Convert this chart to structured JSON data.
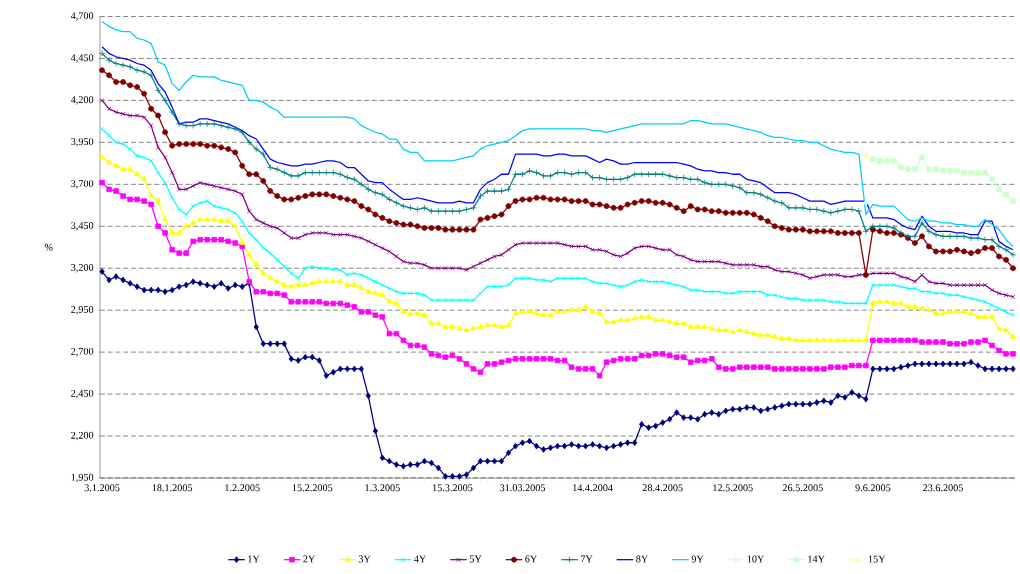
{
  "chart_data": {
    "type": "line",
    "ylabel": "%",
    "categories": [
      "3.1.2005",
      null,
      null,
      null,
      null,
      null,
      null,
      null,
      null,
      null,
      "18.1.2005",
      null,
      null,
      null,
      null,
      null,
      null,
      null,
      null,
      null,
      "1.2.2005",
      null,
      null,
      null,
      null,
      null,
      null,
      null,
      null,
      null,
      "15.2.2005",
      null,
      null,
      null,
      null,
      null,
      null,
      null,
      null,
      null,
      "1.3.2005",
      null,
      null,
      null,
      null,
      null,
      null,
      null,
      null,
      null,
      "15.3.2005",
      null,
      null,
      null,
      null,
      null,
      null,
      null,
      null,
      null,
      "31.03.2005",
      null,
      null,
      null,
      null,
      null,
      null,
      null,
      null,
      null,
      "14.4.2004",
      null,
      null,
      null,
      null,
      null,
      null,
      null,
      null,
      null,
      "28.4.2005",
      null,
      null,
      null,
      null,
      null,
      null,
      null,
      null,
      null,
      "12.5.2005",
      null,
      null,
      null,
      null,
      null,
      null,
      null,
      null,
      null,
      "26.5.2005",
      null,
      null,
      null,
      null,
      null,
      null,
      null,
      null,
      null,
      "9.6.2005",
      null,
      null,
      null,
      null,
      null,
      null,
      null,
      null,
      null,
      "23.6.2005",
      null,
      null,
      null,
      null,
      null,
      null,
      null,
      null,
      null,
      null
    ],
    "ylim": [
      1950,
      4700
    ],
    "yticks": [
      {
        "value": 1950,
        "label": "1,950"
      },
      {
        "value": 2200,
        "label": "2,200"
      },
      {
        "value": 2450,
        "label": "2,450"
      },
      {
        "value": 2700,
        "label": "2,700"
      },
      {
        "value": 2950,
        "label": "2,950"
      },
      {
        "value": 3200,
        "label": "3,200"
      },
      {
        "value": 3450,
        "label": "3,450"
      },
      {
        "value": 3700,
        "label": "3,700"
      },
      {
        "value": 3950,
        "label": "3,950"
      },
      {
        "value": 4200,
        "label": "4,200"
      },
      {
        "value": 4450,
        "label": "4,450"
      },
      {
        "value": 4700,
        "label": "4,700"
      }
    ],
    "grid": "y",
    "legend": "bottom",
    "series": [
      {
        "name": "1Y",
        "color": "#000080",
        "marker": "diamond",
        "values": [
          3180,
          3130,
          3150,
          3130,
          3110,
          3090,
          3070,
          3070,
          3070,
          3060,
          3070,
          3090,
          3100,
          3120,
          3110,
          3100,
          3090,
          3110,
          3080,
          3100,
          3090,
          3110,
          2850,
          2750,
          2750,
          2750,
          2750,
          2660,
          2650,
          2670,
          2670,
          2650,
          2560,
          2580,
          2600,
          2600,
          2600,
          2600,
          2440,
          2230,
          2070,
          2050,
          2030,
          2020,
          2030,
          2030,
          2050,
          2040,
          2010,
          1960,
          1960,
          1960,
          1970,
          2010,
          2050,
          2050,
          2050,
          2050,
          2100,
          2140,
          2160,
          2170,
          2140,
          2120,
          2130,
          2140,
          2140,
          2150,
          2140,
          2140,
          2150,
          2140,
          2130,
          2140,
          2150,
          2160,
          2160,
          2270,
          2250,
          2260,
          2280,
          2300,
          2340,
          2310,
          2310,
          2300,
          2330,
          2340,
          2330,
          2350,
          2360,
          2360,
          2370,
          2370,
          2350,
          2360,
          2370,
          2380,
          2390,
          2390,
          2390,
          2390,
          2400,
          2410,
          2400,
          2440,
          2430,
          2460,
          2440,
          2420,
          2600,
          2600,
          2600,
          2600,
          2610,
          2620,
          2630,
          2630,
          2630,
          2630,
          2630,
          2630,
          2630,
          2630,
          2640,
          2620,
          2600,
          2600,
          2600,
          2600,
          2600
        ]
      },
      {
        "name": "2Y",
        "color": "#ff00ff",
        "marker": "square",
        "values": [
          3710,
          3670,
          3660,
          3630,
          3610,
          3610,
          3600,
          3580,
          3450,
          3410,
          3310,
          3290,
          3290,
          3360,
          3370,
          3370,
          3370,
          3370,
          3360,
          3350,
          3330,
          3120,
          3060,
          3060,
          3050,
          3050,
          3040,
          3000,
          3000,
          3000,
          3000,
          3000,
          2990,
          2990,
          2990,
          2980,
          2970,
          2940,
          2940,
          2920,
          2910,
          2810,
          2810,
          2770,
          2740,
          2740,
          2730,
          2690,
          2680,
          2670,
          2680,
          2660,
          2630,
          2600,
          2580,
          2630,
          2630,
          2640,
          2650,
          2660,
          2660,
          2660,
          2660,
          2660,
          2660,
          2650,
          2650,
          2610,
          2600,
          2600,
          2600,
          2560,
          2640,
          2650,
          2660,
          2660,
          2660,
          2680,
          2680,
          2690,
          2690,
          2680,
          2670,
          2670,
          2640,
          2650,
          2650,
          2660,
          2610,
          2600,
          2600,
          2610,
          2610,
          2610,
          2610,
          2610,
          2600,
          2600,
          2600,
          2600,
          2600,
          2600,
          2600,
          2600,
          2610,
          2610,
          2610,
          2620,
          2620,
          2620,
          2770,
          2770,
          2770,
          2770,
          2770,
          2770,
          2770,
          2760,
          2760,
          2760,
          2760,
          2750,
          2750,
          2750,
          2760,
          2760,
          2770,
          2740,
          2710,
          2690,
          2690
        ]
      },
      {
        "name": "3Y",
        "color": "#ffff00",
        "marker": "triangle",
        "values": [
          3860,
          3830,
          3810,
          3790,
          3790,
          3760,
          3730,
          3630,
          3600,
          3490,
          3410,
          3410,
          3450,
          3470,
          3490,
          3490,
          3490,
          3480,
          3480,
          3450,
          3350,
          3280,
          3220,
          3170,
          3140,
          3120,
          3100,
          3090,
          3100,
          3100,
          3110,
          3120,
          3120,
          3120,
          3120,
          3100,
          3100,
          3080,
          3060,
          3050,
          3040,
          3000,
          2990,
          2940,
          2930,
          2930,
          2920,
          2870,
          2870,
          2850,
          2850,
          2840,
          2830,
          2840,
          2850,
          2860,
          2860,
          2850,
          2860,
          2930,
          2940,
          2940,
          2930,
          2920,
          2920,
          2940,
          2940,
          2950,
          2950,
          2970,
          2940,
          2930,
          2880,
          2880,
          2890,
          2890,
          2900,
          2910,
          2910,
          2890,
          2890,
          2880,
          2870,
          2870,
          2850,
          2850,
          2850,
          2840,
          2830,
          2830,
          2820,
          2830,
          2820,
          2810,
          2800,
          2800,
          2790,
          2780,
          2780,
          2770,
          2770,
          2770,
          2770,
          2770,
          2770,
          2770,
          2770,
          2770,
          2770,
          2770,
          2990,
          3000,
          3000,
          2990,
          2990,
          2970,
          2970,
          2960,
          2950,
          2930,
          2930,
          2940,
          2940,
          2940,
          2930,
          2910,
          2910,
          2910,
          2840,
          2830,
          2790
        ]
      },
      {
        "name": "4Y",
        "color": "#00ffff",
        "marker": "cross",
        "values": [
          4030,
          3990,
          3950,
          3940,
          3910,
          3870,
          3860,
          3840,
          3770,
          3710,
          3620,
          3550,
          3520,
          3570,
          3590,
          3600,
          3570,
          3560,
          3550,
          3530,
          3480,
          3410,
          3370,
          3320,
          3290,
          3250,
          3210,
          3170,
          3140,
          3200,
          3210,
          3200,
          3200,
          3190,
          3190,
          3160,
          3170,
          3160,
          3140,
          3120,
          3100,
          3080,
          3060,
          3050,
          3050,
          3050,
          3040,
          3010,
          3010,
          3010,
          3010,
          3010,
          3010,
          3010,
          3050,
          3090,
          3090,
          3090,
          3100,
          3140,
          3140,
          3140,
          3130,
          3130,
          3120,
          3140,
          3140,
          3140,
          3140,
          3140,
          3120,
          3110,
          3110,
          3100,
          3090,
          3100,
          3120,
          3130,
          3120,
          3120,
          3120,
          3110,
          3100,
          3090,
          3070,
          3070,
          3060,
          3060,
          3060,
          3050,
          3050,
          3060,
          3060,
          3060,
          3060,
          3040,
          3040,
          3030,
          3020,
          3020,
          3010,
          3010,
          3010,
          3010,
          3000,
          3000,
          2990,
          2990,
          2990,
          2990,
          3100,
          3100,
          3100,
          3100,
          3090,
          3080,
          3080,
          3060,
          3060,
          3050,
          3050,
          3040,
          3040,
          3030,
          3020,
          3010,
          3000,
          2980,
          2960,
          2940,
          2920
        ]
      },
      {
        "name": "5Y",
        "color": "#800080",
        "marker": "cross",
        "values": [
          4200,
          4150,
          4130,
          4120,
          4110,
          4110,
          4100,
          4050,
          3920,
          3860,
          3770,
          3670,
          3670,
          3690,
          3710,
          3700,
          3690,
          3680,
          3670,
          3660,
          3640,
          3540,
          3490,
          3470,
          3450,
          3440,
          3410,
          3380,
          3380,
          3400,
          3410,
          3410,
          3410,
          3400,
          3400,
          3400,
          3390,
          3380,
          3360,
          3340,
          3320,
          3300,
          3270,
          3240,
          3230,
          3230,
          3220,
          3200,
          3200,
          3200,
          3200,
          3200,
          3190,
          3210,
          3230,
          3250,
          3270,
          3280,
          3310,
          3340,
          3350,
          3350,
          3350,
          3350,
          3350,
          3350,
          3340,
          3330,
          3330,
          3330,
          3310,
          3310,
          3300,
          3280,
          3270,
          3290,
          3320,
          3330,
          3330,
          3320,
          3310,
          3310,
          3280,
          3270,
          3250,
          3240,
          3240,
          3240,
          3240,
          3230,
          3220,
          3220,
          3220,
          3220,
          3210,
          3210,
          3190,
          3180,
          3180,
          3170,
          3160,
          3140,
          3150,
          3160,
          3160,
          3160,
          3150,
          3150,
          3160,
          3160,
          3170,
          3170,
          3170,
          3170,
          3150,
          3140,
          3120,
          3160,
          3120,
          3110,
          3110,
          3100,
          3100,
          3100,
          3100,
          3100,
          3100,
          3070,
          3050,
          3040,
          3030
        ]
      },
      {
        "name": "6Y",
        "color": "#800000",
        "marker": "circle",
        "values": [
          4380,
          4350,
          4310,
          4310,
          4290,
          4280,
          4240,
          4150,
          4110,
          4010,
          3930,
          3940,
          3940,
          3940,
          3940,
          3930,
          3930,
          3920,
          3910,
          3890,
          3810,
          3760,
          3760,
          3720,
          3660,
          3630,
          3610,
          3610,
          3620,
          3630,
          3640,
          3640,
          3640,
          3630,
          3620,
          3610,
          3600,
          3570,
          3550,
          3520,
          3500,
          3480,
          3470,
          3460,
          3460,
          3450,
          3440,
          3440,
          3440,
          3430,
          3430,
          3430,
          3430,
          3430,
          3490,
          3500,
          3510,
          3520,
          3570,
          3600,
          3610,
          3610,
          3620,
          3620,
          3610,
          3610,
          3610,
          3600,
          3600,
          3600,
          3580,
          3580,
          3570,
          3560,
          3560,
          3580,
          3590,
          3600,
          3600,
          3590,
          3590,
          3580,
          3560,
          3540,
          3570,
          3550,
          3550,
          3540,
          3540,
          3530,
          3530,
          3530,
          3530,
          3520,
          3500,
          3480,
          3450,
          3440,
          3430,
          3430,
          3430,
          3420,
          3420,
          3420,
          3420,
          3410,
          3410,
          3410,
          3410,
          3160,
          3430,
          3420,
          3410,
          3410,
          3400,
          3380,
          3350,
          3390,
          3330,
          3300,
          3300,
          3300,
          3310,
          3300,
          3290,
          3300,
          3320,
          3320,
          3270,
          3250,
          3200
        ]
      },
      {
        "name": "7Y",
        "color": "#008080",
        "marker": "plus",
        "values": [
          4480,
          4440,
          4420,
          4410,
          4400,
          4380,
          4370,
          4350,
          4260,
          4200,
          4130,
          4060,
          4050,
          4050,
          4060,
          4060,
          4060,
          4050,
          4040,
          4030,
          4010,
          3950,
          3910,
          3880,
          3800,
          3790,
          3770,
          3750,
          3750,
          3770,
          3770,
          3770,
          3770,
          3770,
          3760,
          3740,
          3730,
          3700,
          3670,
          3650,
          3640,
          3610,
          3590,
          3570,
          3560,
          3550,
          3560,
          3540,
          3540,
          3540,
          3540,
          3540,
          3550,
          3560,
          3630,
          3660,
          3660,
          3660,
          3670,
          3760,
          3760,
          3780,
          3770,
          3750,
          3750,
          3770,
          3770,
          3760,
          3770,
          3770,
          3740,
          3740,
          3730,
          3730,
          3730,
          3740,
          3760,
          3760,
          3760,
          3760,
          3760,
          3750,
          3740,
          3740,
          3730,
          3730,
          3710,
          3700,
          3700,
          3700,
          3690,
          3680,
          3650,
          3650,
          3640,
          3620,
          3600,
          3590,
          3560,
          3560,
          3560,
          3550,
          3550,
          3540,
          3530,
          3540,
          3550,
          3550,
          3540,
          3420,
          3450,
          3450,
          3450,
          3440,
          3410,
          3390,
          3390,
          3470,
          3420,
          3400,
          3390,
          3390,
          3390,
          3390,
          3380,
          3380,
          3370,
          3370,
          3330,
          3310,
          3280
        ]
      },
      {
        "name": "8Y",
        "color": "#0000ff",
        "marker": "none",
        "values": [
          4520,
          4480,
          4460,
          4450,
          4440,
          4420,
          4410,
          4380,
          4300,
          4250,
          4160,
          4060,
          4070,
          4070,
          4090,
          4090,
          4080,
          4070,
          4060,
          4040,
          4020,
          3990,
          3970,
          3910,
          3850,
          3830,
          3820,
          3810,
          3810,
          3820,
          3820,
          3830,
          3840,
          3840,
          3830,
          3800,
          3800,
          3760,
          3720,
          3710,
          3710,
          3670,
          3640,
          3610,
          3610,
          3620,
          3610,
          3600,
          3590,
          3590,
          3590,
          3600,
          3590,
          3590,
          3670,
          3710,
          3730,
          3760,
          3760,
          3880,
          3880,
          3880,
          3880,
          3870,
          3870,
          3880,
          3880,
          3870,
          3870,
          3870,
          3850,
          3830,
          3850,
          3840,
          3820,
          3820,
          3830,
          3830,
          3830,
          3830,
          3830,
          3830,
          3830,
          3820,
          3810,
          3790,
          3780,
          3780,
          3770,
          3770,
          3760,
          3760,
          3730,
          3720,
          3710,
          3680,
          3650,
          3650,
          3650,
          3640,
          3620,
          3600,
          3600,
          3600,
          3580,
          3590,
          3600,
          3600,
          3600,
          3600,
          3500,
          3500,
          3500,
          3490,
          3460,
          3440,
          3430,
          3510,
          3450,
          3420,
          3420,
          3420,
          3410,
          3410,
          3400,
          3400,
          3480,
          3480,
          3360,
          3330,
          3310
        ]
      },
      {
        "name": "9Y",
        "color": "#00ccff",
        "marker": "none",
        "values": [
          4670,
          4640,
          4620,
          4610,
          4610,
          4570,
          4560,
          4540,
          4430,
          4410,
          4300,
          4260,
          4310,
          4350,
          4340,
          4340,
          4340,
          4320,
          4310,
          4300,
          4290,
          4200,
          4200,
          4190,
          4160,
          4140,
          4100,
          4100,
          4100,
          4100,
          4100,
          4100,
          4100,
          4100,
          4100,
          4100,
          4090,
          4050,
          4030,
          4010,
          4000,
          3970,
          3970,
          3910,
          3890,
          3890,
          3840,
          3840,
          3840,
          3840,
          3840,
          3850,
          3860,
          3870,
          3910,
          3930,
          3940,
          3950,
          3960,
          3990,
          4020,
          4030,
          4030,
          4030,
          4030,
          4030,
          4030,
          4030,
          4030,
          4030,
          4020,
          4020,
          4010,
          4020,
          4030,
          4040,
          4050,
          4060,
          4060,
          4060,
          4060,
          4060,
          4060,
          4060,
          4080,
          4080,
          4070,
          4060,
          4060,
          4060,
          4050,
          4040,
          4030,
          4020,
          4010,
          3990,
          3980,
          3980,
          3970,
          3960,
          3960,
          3950,
          3950,
          3930,
          3910,
          3900,
          3890,
          3890,
          3880,
          3520,
          3580,
          3570,
          3570,
          3570,
          3530,
          3490,
          3480,
          3500,
          3480,
          3480,
          3470,
          3470,
          3460,
          3460,
          3450,
          3450,
          3490,
          3460,
          3430,
          3370,
          3330
        ]
      },
      {
        "name": "10Y",
        "color": "#ccffff",
        "marker": "diamond",
        "values": [
          null,
          null,
          null,
          null,
          null,
          null,
          null,
          null,
          null,
          null,
          null,
          null,
          null,
          null,
          null,
          null,
          null,
          null,
          null,
          null,
          null,
          null,
          null,
          null,
          null,
          null,
          null,
          null,
          null,
          null,
          null,
          null,
          null,
          null,
          null,
          null,
          null,
          null,
          null,
          null,
          null,
          null,
          null,
          null,
          null,
          null,
          null,
          null,
          null,
          null,
          null,
          null,
          null,
          null,
          null,
          null,
          null,
          null,
          null,
          null,
          null,
          null,
          null,
          null,
          null,
          null,
          null,
          null,
          null,
          null,
          null,
          null,
          null,
          null,
          null,
          null,
          null,
          null,
          null,
          null,
          null,
          null,
          null,
          null,
          null,
          null,
          null,
          null,
          null,
          null,
          null,
          null,
          null,
          null,
          null,
          null,
          null,
          null,
          null,
          null,
          null,
          null,
          null,
          null,
          null,
          null,
          null,
          null,
          null,
          3590,
          null,
          null,
          null,
          null,
          null,
          null,
          null,
          null,
          null,
          null,
          null,
          null,
          null,
          null,
          null,
          null,
          null,
          null,
          null,
          null,
          null
        ]
      },
      {
        "name": "14Y",
        "color": "#ccffcc",
        "marker": "square",
        "values": [
          null,
          null,
          null,
          null,
          null,
          null,
          null,
          null,
          null,
          null,
          null,
          null,
          null,
          null,
          null,
          null,
          null,
          null,
          null,
          null,
          null,
          null,
          null,
          null,
          null,
          null,
          null,
          null,
          null,
          null,
          null,
          null,
          null,
          null,
          null,
          null,
          null,
          null,
          null,
          null,
          null,
          null,
          null,
          null,
          null,
          null,
          null,
          null,
          null,
          null,
          null,
          null,
          null,
          null,
          null,
          null,
          null,
          null,
          null,
          null,
          null,
          null,
          null,
          null,
          null,
          null,
          null,
          null,
          null,
          null,
          null,
          null,
          null,
          null,
          null,
          null,
          null,
          null,
          null,
          null,
          null,
          null,
          null,
          null,
          null,
          null,
          null,
          null,
          null,
          null,
          null,
          null,
          null,
          null,
          null,
          null,
          null,
          null,
          null,
          null,
          null,
          null,
          null,
          null,
          null,
          null,
          null,
          null,
          null,
          null,
          3850,
          3840,
          3840,
          3840,
          3800,
          3790,
          3790,
          3860,
          3790,
          3790,
          3780,
          3780,
          3780,
          3770,
          3770,
          3770,
          3770,
          3730,
          3670,
          3640,
          3600
        ]
      },
      {
        "name": "15Y",
        "color": "#ffff99",
        "marker": "triangle",
        "values": [
          null,
          null,
          null,
          null,
          null,
          null,
          null,
          null,
          null,
          null,
          null,
          null,
          null,
          null,
          null,
          null,
          null,
          null,
          null,
          null,
          null,
          null,
          null,
          null,
          null,
          null,
          null,
          null,
          null,
          null,
          null,
          null,
          null,
          null,
          null,
          null,
          null,
          null,
          null,
          null,
          null,
          null,
          null,
          null,
          null,
          null,
          null,
          null,
          null,
          null,
          null,
          null,
          null,
          null,
          null,
          null,
          null,
          null,
          null,
          null,
          null,
          null,
          null,
          null,
          null,
          null,
          null,
          null,
          null,
          null,
          null,
          null,
          null,
          null,
          null,
          null,
          null,
          null,
          null,
          null,
          null,
          null,
          null,
          null,
          null,
          null,
          null,
          null,
          null,
          null,
          null,
          null,
          null,
          null,
          null,
          null,
          null,
          null,
          null,
          null,
          null,
          null,
          null,
          null,
          null,
          null,
          null,
          null,
          null,
          3870,
          null,
          null,
          null,
          null,
          null,
          null,
          null,
          null,
          null,
          null,
          null,
          null,
          null,
          null,
          null,
          null,
          null,
          null,
          null,
          null,
          null
        ]
      }
    ]
  }
}
